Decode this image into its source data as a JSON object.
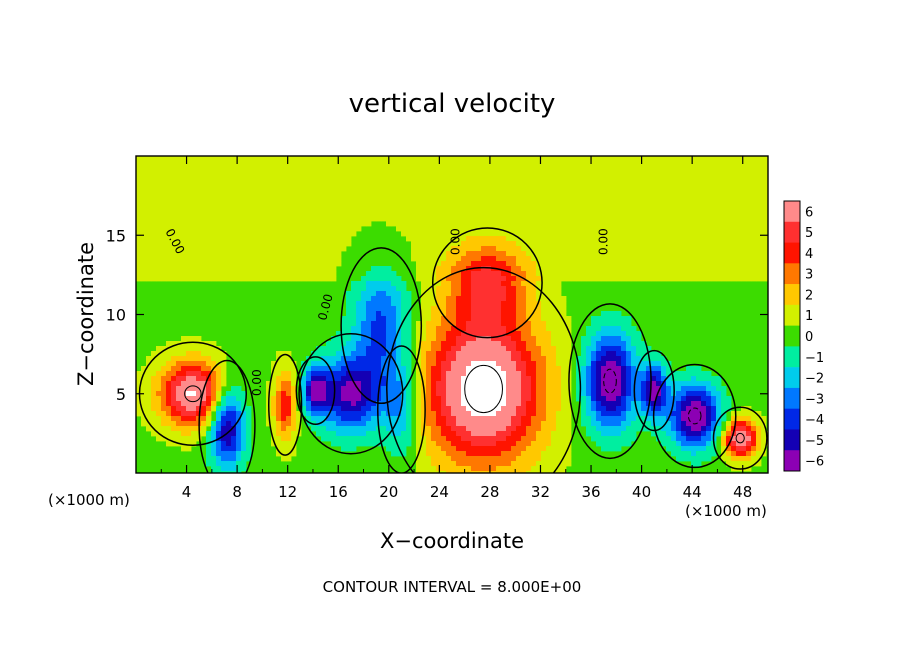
{
  "chart_data": {
    "type": "heatmap",
    "title": "vertical velocity",
    "xlabel": "X−coordinate",
    "ylabel": "Z−coordinate",
    "x_unit_left": "(×1000 m)",
    "x_unit_right": "(×1000 m)",
    "footer": "CONTOUR INTERVAL = 8.000E+00",
    "xlim": [
      0,
      50
    ],
    "ylim": [
      0,
      20
    ],
    "x_ticks": [
      4,
      8,
      12,
      16,
      20,
      24,
      28,
      32,
      36,
      40,
      44,
      48
    ],
    "x_tick_labels": [
      "4",
      "8",
      "12",
      "16",
      "20",
      "24",
      "28",
      "32",
      "36",
      "40",
      "44",
      "48"
    ],
    "y_ticks": [
      5,
      10,
      15
    ],
    "y_tick_labels": [
      "5",
      "10",
      "15"
    ],
    "contour_labels": [
      {
        "text": "0.00",
        "x": 2.8,
        "y": 14.5,
        "rotate": 62
      },
      {
        "text": "0.00",
        "x": 9.9,
        "y": 5.7,
        "rotate": -90
      },
      {
        "text": "0.00",
        "x": 15.3,
        "y": 10.4,
        "rotate": -75
      },
      {
        "text": "0.00",
        "x": 25.6,
        "y": 14.6,
        "rotate": -90
      },
      {
        "text": "0.00",
        "x": 37.3,
        "y": 14.6,
        "rotate": -90
      }
    ],
    "colorbar": {
      "levels": [
        6,
        5,
        4,
        3,
        2,
        1,
        0,
        -1,
        -2,
        -3,
        -4,
        -5,
        -6
      ],
      "labels": [
        "6",
        "5",
        "4",
        "3",
        "2",
        "1",
        "0",
        "−1",
        "−2",
        "−3",
        "−4",
        "−5",
        "−6"
      ],
      "colors": [
        "#ff8a8a",
        "#ff3030",
        "#ff1400",
        "#ff7800",
        "#ffc800",
        "#d2f000",
        "#3cdc00",
        "#00eea0",
        "#00ccec",
        "#0078ff",
        "#0028e6",
        "#1400b4",
        "#8c00b4"
      ]
    },
    "features": [
      {
        "type": "updraft",
        "x": 27.5,
        "y": 5.3,
        "rx": 4.6,
        "ry": 4.6,
        "peak": 8
      },
      {
        "type": "updraft",
        "x": 4.5,
        "y": 5.0,
        "rx": 2.6,
        "ry": 2.0,
        "peak": 7
      },
      {
        "type": "updraft",
        "x": 47.8,
        "y": 2.2,
        "rx": 1.3,
        "ry": 1.2,
        "peak": 7
      },
      {
        "type": "updraft",
        "x": 11.8,
        "y": 4.3,
        "rx": 0.9,
        "ry": 2.2,
        "peak": 4
      },
      {
        "type": "updraft",
        "x": 27.8,
        "y": 12.0,
        "rx": 3.0,
        "ry": 2.4,
        "peak": 4
      },
      {
        "type": "downdraft",
        "x": 37.5,
        "y": 5.8,
        "rx": 2.0,
        "ry": 3.0,
        "peak": -7
      },
      {
        "type": "downdraft",
        "x": 44.2,
        "y": 3.6,
        "rx": 2.0,
        "ry": 2.0,
        "peak": -7
      },
      {
        "type": "downdraft",
        "x": 41.0,
        "y": 5.2,
        "rx": 1.0,
        "ry": 1.6,
        "peak": -6
      },
      {
        "type": "downdraft",
        "x": 7.2,
        "y": 3.0,
        "rx": 1.4,
        "ry": 2.6,
        "peak": -6
      },
      {
        "type": "downdraft",
        "x": 17.0,
        "y": 5.0,
        "rx": 2.6,
        "ry": 2.4,
        "peak": -6
      },
      {
        "type": "downdraft",
        "x": 14.2,
        "y": 5.2,
        "rx": 1.0,
        "ry": 1.4,
        "peak": -5
      },
      {
        "type": "downdraft",
        "x": 19.4,
        "y": 9.3,
        "rx": 2.2,
        "ry": 3.4,
        "peak": -4
      },
      {
        "type": "downdraft",
        "x": 21.0,
        "y": 4.0,
        "rx": 1.4,
        "ry": 3.0,
        "peak": -3
      }
    ]
  }
}
